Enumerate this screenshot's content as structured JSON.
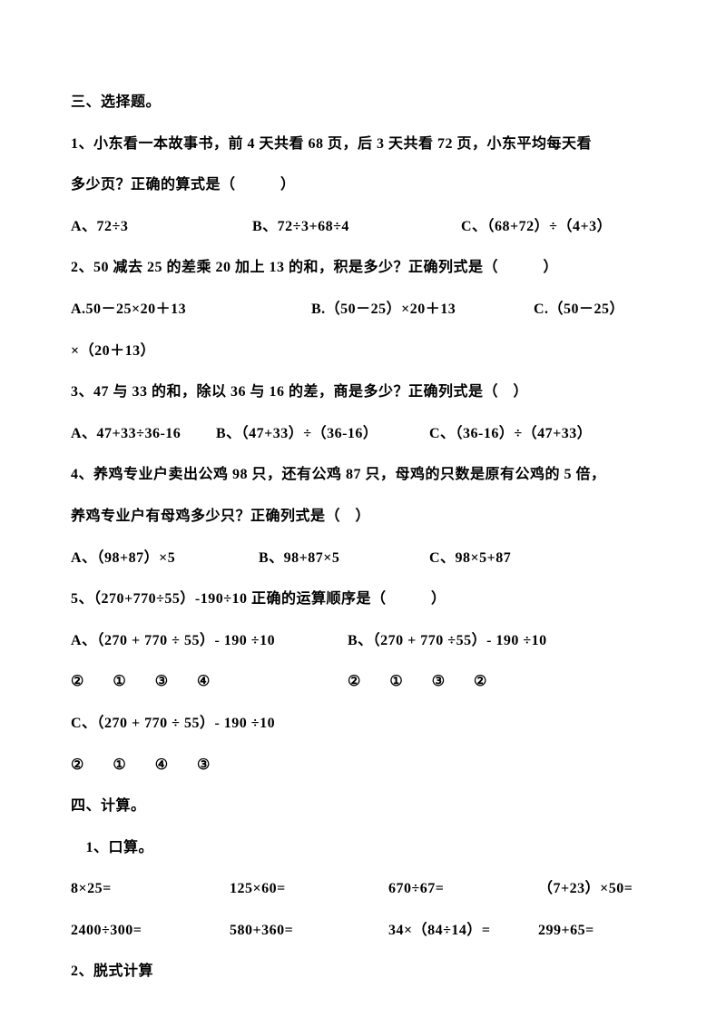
{
  "section3": {
    "title": "三、选择题。",
    "q1": {
      "text": "1、小东看一本故事书，前 4 天共看 68 页，后 3 天共看 72 页，小东平均每天看",
      "text2": "多少页？正确的算式是（　　　）",
      "a": "A、72÷3",
      "b": "B、72÷3+68÷4",
      "c": "C、（68+72）÷（4+3）"
    },
    "q2": {
      "text": "2、50 减去 25 的差乘 20 加上 13 的和，积是多少？正确列式是（　　　）",
      "a": "A.50－25×20＋13",
      "b": "B.（50－25）×20＋13",
      "c": "C.（50－25）",
      "c2": "×（20＋13）"
    },
    "q3": {
      "text": "3、47 与 33 的和，除以 36 与 16 的差，商是多少？正确列式是（　）",
      "a": "A、47+33÷36-16",
      "b": "B、（47+33）÷（36-16）",
      "c": "C、（36-16）÷（47+33）"
    },
    "q4": {
      "text": "4、养鸡专业户卖出公鸡 98 只，还有公鸡 87 只，母鸡的只数是原有公鸡的 5 倍，",
      "text2": "养鸡专业户有母鸡多少只？正确列式是（　）",
      "a": "A、（98+87）×5",
      "b": "B、98+87×5",
      "c": "C、98×5+87"
    },
    "q5": {
      "text": "5、（270+770÷55）-190÷10 正确的运算顺序是（　　　）",
      "a": "A、（270 + 770 ÷ 55）- 190 ÷10",
      "b": "B、（270 + 770 ÷55）- 190 ÷10",
      "seq_a": "②　　①　　③　　④",
      "seq_b": "②　　①　　③　　②",
      "c": "C、（270 + 770 ÷ 55）- 190 ÷10",
      "seq_c": "②　　①　　④　　③"
    }
  },
  "section4": {
    "title": "四、计算。",
    "sub1": "　1、口算。",
    "row1": {
      "a": "8×25=",
      "b": "125×60=",
      "c": "670÷67=",
      "d": "（7+23）×50="
    },
    "row2": {
      "a": " 2400÷300=",
      "b": "580+360=",
      "c": "34×（84÷14）=",
      "d": "299+65="
    },
    "sub2": "2、脱式计算"
  },
  "layout": {
    "q1_col_a": "0px",
    "q1_col_b": "200px",
    "q1_col_c": "430px",
    "q2_col_a": "0px",
    "q2_col_b": "265px",
    "q2_col_c": "510px",
    "q3_col_a": "0px",
    "q3_col_b": "160px",
    "q3_col_c": "395px",
    "q4_col_a": "0px",
    "q4_col_b": "207px",
    "q4_col_c": "395px",
    "q5_col_a": "0px",
    "q5_col_b": "305px",
    "calc_col_a": "0px",
    "calc_col_b": "175px",
    "calc_col_c": "350px",
    "calc_col_d": "515px"
  }
}
